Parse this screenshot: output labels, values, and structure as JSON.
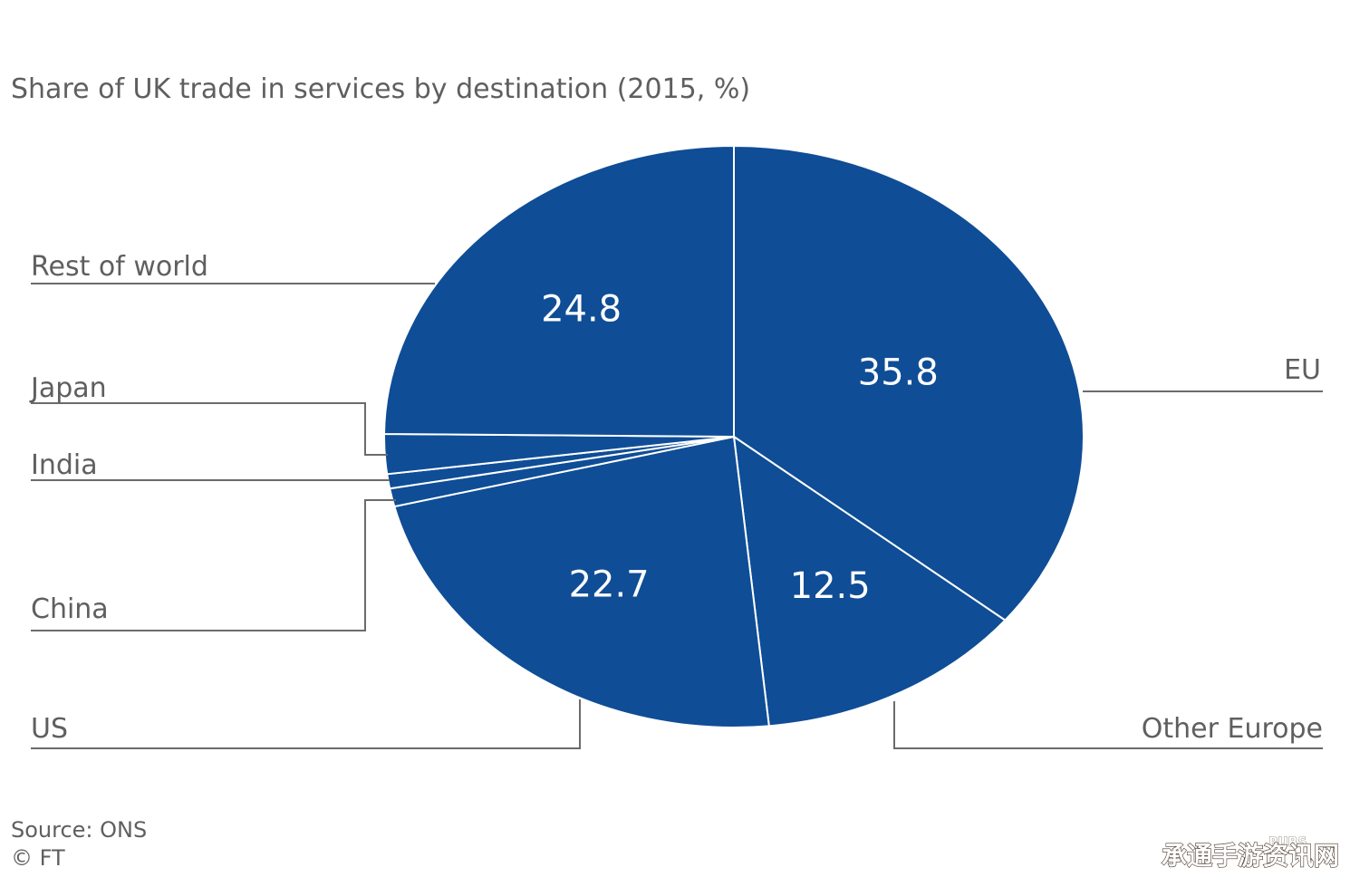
{
  "chart_data": {
    "type": "pie",
    "title": "Share of UK trade in services by destination (2015, %)",
    "slices": [
      {
        "name": "EU",
        "value": 35.8,
        "value_label": "35.8"
      },
      {
        "name": "Other Europe",
        "value": 12.5,
        "value_label": "12.5"
      },
      {
        "name": "US",
        "value": 22.7,
        "value_label": "22.7"
      },
      {
        "name": "China",
        "value": 1.0,
        "value_label": ""
      },
      {
        "name": "India",
        "value": 0.8,
        "value_label": ""
      },
      {
        "name": "Japan",
        "value": 2.2,
        "value_label": ""
      },
      {
        "name": "Rest of world",
        "value": 24.8,
        "value_label": "24.8"
      }
    ],
    "colors": {
      "slice": "#0f4d96",
      "separator": "#ffffff",
      "leader": "#6b6b6b"
    },
    "legend": "none"
  },
  "footer": {
    "source": "Source: ONS",
    "copyright": "© FT"
  },
  "watermark": {
    "text": "承通手游资讯网",
    "small": "PUBS"
  }
}
